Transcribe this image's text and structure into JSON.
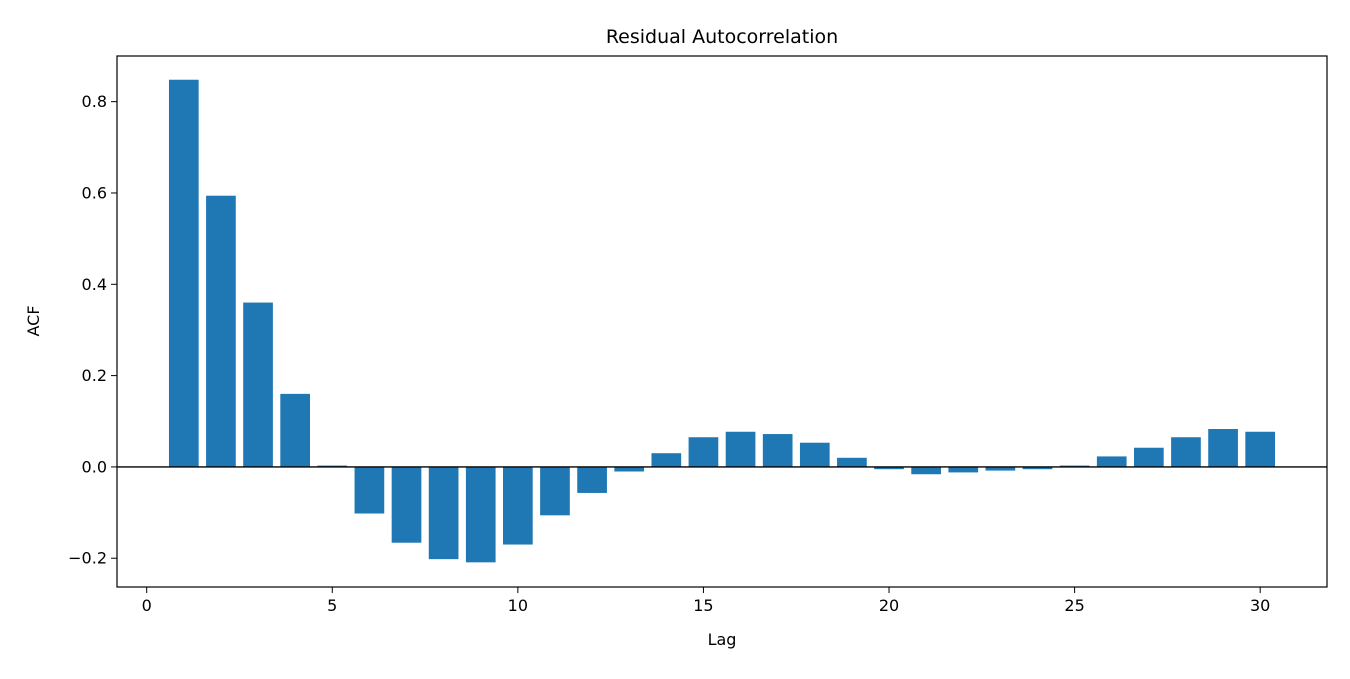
{
  "chart_data": {
    "type": "bar",
    "title": "Residual Autocorrelation",
    "xlabel": "Lag",
    "ylabel": "ACF",
    "x": [
      1,
      2,
      3,
      4,
      5,
      6,
      7,
      8,
      9,
      10,
      11,
      12,
      13,
      14,
      15,
      16,
      17,
      18,
      19,
      20,
      21,
      22,
      23,
      24,
      25,
      26,
      27,
      28,
      29,
      30
    ],
    "values": [
      0.848,
      0.594,
      0.36,
      0.16,
      0.003,
      -0.102,
      -0.166,
      -0.202,
      -0.209,
      -0.17,
      -0.106,
      -0.057,
      -0.01,
      0.03,
      0.065,
      0.077,
      0.072,
      0.053,
      0.02,
      -0.005,
      -0.016,
      -0.012,
      -0.008,
      -0.005,
      0.003,
      0.023,
      0.042,
      0.065,
      0.083,
      0.077
    ],
    "xlim": [
      -0.8,
      31.8
    ],
    "ylim": [
      -0.263,
      0.9
    ],
    "xticks": [
      0,
      5,
      10,
      15,
      20,
      25,
      30
    ],
    "xtick_labels": [
      "0",
      "5",
      "10",
      "15",
      "20",
      "25",
      "30"
    ],
    "yticks": [
      -0.2,
      0.0,
      0.2,
      0.4,
      0.6,
      0.8
    ],
    "ytick_labels": [
      "−0.2",
      "0.0",
      "0.2",
      "0.4",
      "0.6",
      "0.8"
    ],
    "zero_line": true,
    "grid": false,
    "colors": {
      "bar": "#1f77b4",
      "zero_line": "#000000",
      "axes": "#000000"
    }
  }
}
